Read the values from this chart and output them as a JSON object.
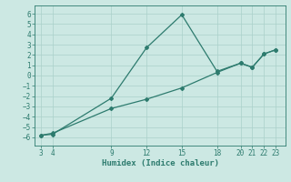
{
  "xlabel": "Humidex (Indice chaleur)",
  "line1_x": [
    3,
    4,
    9,
    12,
    15,
    18,
    20,
    21,
    22,
    23
  ],
  "line1_y": [
    -5.8,
    -5.6,
    -3.2,
    -2.3,
    -1.2,
    0.3,
    1.2,
    0.8,
    2.1,
    2.5
  ],
  "line2_x": [
    3,
    4,
    9,
    12,
    15,
    18,
    20,
    21,
    22,
    23
  ],
  "line2_y": [
    -5.8,
    -5.7,
    -2.2,
    2.7,
    5.9,
    0.4,
    1.2,
    0.8,
    2.1,
    2.5
  ],
  "line_color": "#2d7b6e",
  "bg_color": "#cce8e3",
  "grid_color": "#aad0ca",
  "ylim": [
    -6.8,
    6.8
  ],
  "yticks": [
    -6,
    -5,
    -4,
    -3,
    -2,
    -1,
    0,
    1,
    2,
    3,
    4,
    5,
    6
  ],
  "xticks": [
    3,
    4,
    9,
    12,
    15,
    18,
    20,
    21,
    22,
    23
  ],
  "xlim": [
    2.5,
    23.8
  ]
}
